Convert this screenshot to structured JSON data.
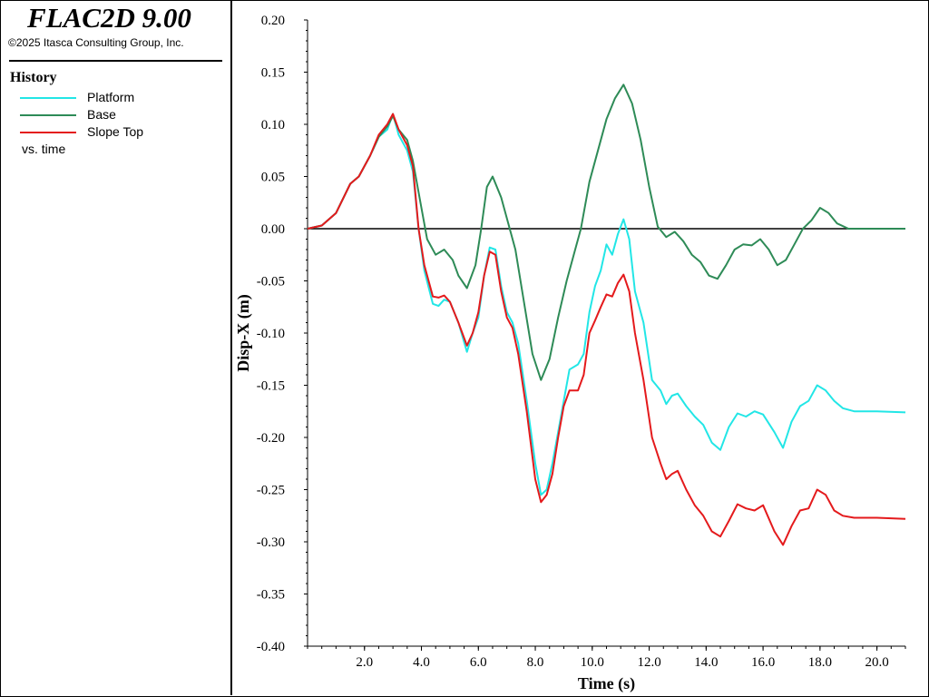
{
  "app": {
    "title": "FLAC2D 9.00",
    "copyright": "©2025 Itasca Consulting Group, Inc."
  },
  "legend": {
    "heading": "History",
    "footer": "vs. time",
    "items": [
      {
        "label": "Platform",
        "color": "#22e6e6"
      },
      {
        "label": "Base",
        "color": "#2e8b57"
      },
      {
        "label": "Slope Top",
        "color": "#e41a1c"
      }
    ]
  },
  "chart_data": {
    "type": "line",
    "title": "",
    "xlabel": "Time (s)",
    "ylabel": "Disp-X (m)",
    "xlim": [
      0,
      21
    ],
    "ylim": [
      -0.4,
      0.2
    ],
    "xticks": [
      2.0,
      4.0,
      6.0,
      8.0,
      10.0,
      12.0,
      14.0,
      16.0,
      18.0,
      20.0
    ],
    "xtick_labels": [
      "2.0",
      "4.0",
      "6.0",
      "8.0",
      "10.0",
      "12.0",
      "14.0",
      "16.0",
      "18.0",
      "20.0"
    ],
    "yticks": [
      0.2,
      0.15,
      0.1,
      0.05,
      0.0,
      -0.05,
      -0.1,
      -0.15,
      -0.2,
      -0.25,
      -0.3,
      -0.35,
      -0.4
    ],
    "ytick_labels": [
      "0.20",
      "0.15",
      "0.10",
      "0.05",
      "0.00",
      "-0.05",
      "-0.10",
      "-0.15",
      "-0.20",
      "-0.25",
      "-0.30",
      "-0.35",
      "-0.40"
    ],
    "zero_line": true,
    "series": [
      {
        "name": "Platform",
        "color": "#22e6e6",
        "points": [
          [
            0,
            0
          ],
          [
            0.5,
            0.003
          ],
          [
            1.0,
            0.015
          ],
          [
            1.5,
            0.043
          ],
          [
            1.8,
            0.05
          ],
          [
            2.2,
            0.07
          ],
          [
            2.5,
            0.088
          ],
          [
            2.8,
            0.095
          ],
          [
            3.0,
            0.11
          ],
          [
            3.2,
            0.09
          ],
          [
            3.5,
            0.075
          ],
          [
            3.7,
            0.055
          ],
          [
            3.9,
            0.0
          ],
          [
            4.1,
            -0.04
          ],
          [
            4.4,
            -0.072
          ],
          [
            4.6,
            -0.074
          ],
          [
            4.8,
            -0.068
          ],
          [
            5.0,
            -0.07
          ],
          [
            5.3,
            -0.09
          ],
          [
            5.6,
            -0.118
          ],
          [
            5.8,
            -0.1
          ],
          [
            6.0,
            -0.085
          ],
          [
            6.2,
            -0.045
          ],
          [
            6.4,
            -0.018
          ],
          [
            6.6,
            -0.02
          ],
          [
            6.8,
            -0.055
          ],
          [
            7.0,
            -0.08
          ],
          [
            7.2,
            -0.09
          ],
          [
            7.4,
            -0.11
          ],
          [
            7.7,
            -0.165
          ],
          [
            8.0,
            -0.225
          ],
          [
            8.2,
            -0.255
          ],
          [
            8.4,
            -0.25
          ],
          [
            8.6,
            -0.225
          ],
          [
            8.8,
            -0.195
          ],
          [
            9.0,
            -0.165
          ],
          [
            9.2,
            -0.135
          ],
          [
            9.5,
            -0.13
          ],
          [
            9.7,
            -0.12
          ],
          [
            9.9,
            -0.08
          ],
          [
            10.1,
            -0.055
          ],
          [
            10.3,
            -0.04
          ],
          [
            10.5,
            -0.015
          ],
          [
            10.7,
            -0.025
          ],
          [
            10.9,
            -0.005
          ],
          [
            11.1,
            0.009
          ],
          [
            11.3,
            -0.01
          ],
          [
            11.5,
            -0.06
          ],
          [
            11.8,
            -0.09
          ],
          [
            12.1,
            -0.145
          ],
          [
            12.4,
            -0.155
          ],
          [
            12.6,
            -0.168
          ],
          [
            12.8,
            -0.16
          ],
          [
            13.0,
            -0.158
          ],
          [
            13.3,
            -0.17
          ],
          [
            13.6,
            -0.18
          ],
          [
            13.9,
            -0.188
          ],
          [
            14.2,
            -0.205
          ],
          [
            14.5,
            -0.212
          ],
          [
            14.8,
            -0.19
          ],
          [
            15.1,
            -0.177
          ],
          [
            15.4,
            -0.18
          ],
          [
            15.7,
            -0.175
          ],
          [
            16.0,
            -0.178
          ],
          [
            16.4,
            -0.195
          ],
          [
            16.7,
            -0.21
          ],
          [
            17.0,
            -0.185
          ],
          [
            17.3,
            -0.17
          ],
          [
            17.6,
            -0.165
          ],
          [
            17.9,
            -0.15
          ],
          [
            18.2,
            -0.155
          ],
          [
            18.5,
            -0.165
          ],
          [
            18.8,
            -0.172
          ],
          [
            19.2,
            -0.175
          ],
          [
            20.0,
            -0.175
          ],
          [
            21.0,
            -0.176
          ]
        ]
      },
      {
        "name": "Base",
        "color": "#2e8b57",
        "points": [
          [
            0,
            0
          ],
          [
            0.5,
            0.003
          ],
          [
            1.0,
            0.015
          ],
          [
            1.5,
            0.043
          ],
          [
            1.8,
            0.05
          ],
          [
            2.2,
            0.07
          ],
          [
            2.5,
            0.088
          ],
          [
            2.8,
            0.098
          ],
          [
            3.0,
            0.108
          ],
          [
            3.2,
            0.095
          ],
          [
            3.5,
            0.085
          ],
          [
            3.7,
            0.065
          ],
          [
            4.0,
            0.02
          ],
          [
            4.2,
            -0.01
          ],
          [
            4.5,
            -0.025
          ],
          [
            4.8,
            -0.02
          ],
          [
            5.1,
            -0.03
          ],
          [
            5.3,
            -0.045
          ],
          [
            5.6,
            -0.057
          ],
          [
            5.9,
            -0.035
          ],
          [
            6.1,
            0.0
          ],
          [
            6.3,
            0.04
          ],
          [
            6.5,
            0.05
          ],
          [
            6.8,
            0.03
          ],
          [
            7.0,
            0.01
          ],
          [
            7.3,
            -0.02
          ],
          [
            7.6,
            -0.07
          ],
          [
            7.9,
            -0.12
          ],
          [
            8.2,
            -0.145
          ],
          [
            8.5,
            -0.125
          ],
          [
            8.8,
            -0.085
          ],
          [
            9.1,
            -0.05
          ],
          [
            9.4,
            -0.02
          ],
          [
            9.6,
            0.0
          ],
          [
            9.9,
            0.045
          ],
          [
            10.2,
            0.075
          ],
          [
            10.5,
            0.105
          ],
          [
            10.8,
            0.125
          ],
          [
            11.1,
            0.138
          ],
          [
            11.4,
            0.12
          ],
          [
            11.7,
            0.085
          ],
          [
            12.0,
            0.04
          ],
          [
            12.3,
            0.002
          ],
          [
            12.6,
            -0.008
          ],
          [
            12.9,
            -0.003
          ],
          [
            13.2,
            -0.012
          ],
          [
            13.5,
            -0.025
          ],
          [
            13.8,
            -0.032
          ],
          [
            14.1,
            -0.045
          ],
          [
            14.4,
            -0.048
          ],
          [
            14.7,
            -0.035
          ],
          [
            15.0,
            -0.02
          ],
          [
            15.3,
            -0.015
          ],
          [
            15.6,
            -0.016
          ],
          [
            15.9,
            -0.01
          ],
          [
            16.2,
            -0.02
          ],
          [
            16.5,
            -0.035
          ],
          [
            16.8,
            -0.03
          ],
          [
            17.1,
            -0.015
          ],
          [
            17.4,
            0.0
          ],
          [
            17.7,
            0.008
          ],
          [
            18.0,
            0.02
          ],
          [
            18.3,
            0.015
          ],
          [
            18.6,
            0.005
          ],
          [
            19.0,
            0.0
          ],
          [
            20.0,
            0.0
          ],
          [
            21.0,
            0.0
          ]
        ]
      },
      {
        "name": "Slope Top",
        "color": "#e41a1c",
        "points": [
          [
            0,
            0
          ],
          [
            0.5,
            0.003
          ],
          [
            1.0,
            0.015
          ],
          [
            1.5,
            0.043
          ],
          [
            1.8,
            0.05
          ],
          [
            2.2,
            0.07
          ],
          [
            2.5,
            0.09
          ],
          [
            2.8,
            0.1
          ],
          [
            3.0,
            0.11
          ],
          [
            3.2,
            0.095
          ],
          [
            3.5,
            0.08
          ],
          [
            3.7,
            0.06
          ],
          [
            3.9,
            0.0
          ],
          [
            4.1,
            -0.035
          ],
          [
            4.4,
            -0.065
          ],
          [
            4.6,
            -0.066
          ],
          [
            4.8,
            -0.064
          ],
          [
            5.0,
            -0.07
          ],
          [
            5.3,
            -0.09
          ],
          [
            5.6,
            -0.112
          ],
          [
            5.8,
            -0.1
          ],
          [
            6.0,
            -0.08
          ],
          [
            6.2,
            -0.045
          ],
          [
            6.4,
            -0.022
          ],
          [
            6.6,
            -0.025
          ],
          [
            6.8,
            -0.06
          ],
          [
            7.0,
            -0.085
          ],
          [
            7.2,
            -0.095
          ],
          [
            7.4,
            -0.12
          ],
          [
            7.7,
            -0.175
          ],
          [
            8.0,
            -0.24
          ],
          [
            8.2,
            -0.262
          ],
          [
            8.4,
            -0.255
          ],
          [
            8.6,
            -0.235
          ],
          [
            8.8,
            -0.2
          ],
          [
            9.0,
            -0.17
          ],
          [
            9.2,
            -0.155
          ],
          [
            9.5,
            -0.155
          ],
          [
            9.7,
            -0.14
          ],
          [
            9.9,
            -0.1
          ],
          [
            10.1,
            -0.088
          ],
          [
            10.3,
            -0.075
          ],
          [
            10.5,
            -0.063
          ],
          [
            10.7,
            -0.065
          ],
          [
            10.9,
            -0.052
          ],
          [
            11.1,
            -0.044
          ],
          [
            11.3,
            -0.06
          ],
          [
            11.5,
            -0.1
          ],
          [
            11.8,
            -0.145
          ],
          [
            12.1,
            -0.2
          ],
          [
            12.4,
            -0.225
          ],
          [
            12.6,
            -0.24
          ],
          [
            12.8,
            -0.235
          ],
          [
            13.0,
            -0.232
          ],
          [
            13.3,
            -0.25
          ],
          [
            13.6,
            -0.265
          ],
          [
            13.9,
            -0.275
          ],
          [
            14.2,
            -0.29
          ],
          [
            14.5,
            -0.295
          ],
          [
            14.8,
            -0.28
          ],
          [
            15.1,
            -0.264
          ],
          [
            15.4,
            -0.268
          ],
          [
            15.7,
            -0.27
          ],
          [
            16.0,
            -0.265
          ],
          [
            16.4,
            -0.29
          ],
          [
            16.7,
            -0.303
          ],
          [
            17.0,
            -0.285
          ],
          [
            17.3,
            -0.27
          ],
          [
            17.6,
            -0.268
          ],
          [
            17.9,
            -0.25
          ],
          [
            18.2,
            -0.255
          ],
          [
            18.5,
            -0.27
          ],
          [
            18.8,
            -0.275
          ],
          [
            19.2,
            -0.277
          ],
          [
            20.0,
            -0.277
          ],
          [
            21.0,
            -0.278
          ]
        ]
      }
    ]
  }
}
